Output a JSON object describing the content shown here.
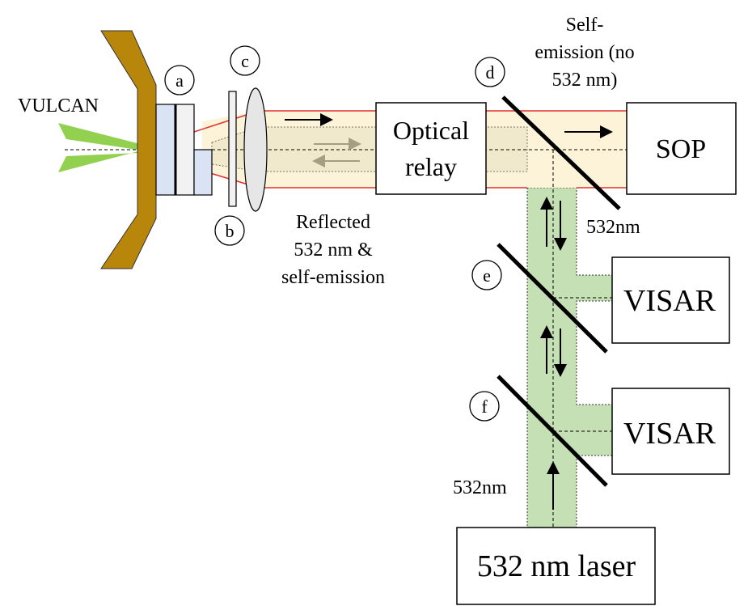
{
  "labels": {
    "vulcan": "VULCAN",
    "optical_relay_line1": "Optical",
    "optical_relay_line2": "relay",
    "sop": "SOP",
    "visar_top": "VISAR",
    "visar_bottom": "VISAR",
    "laser": "532 nm laser",
    "self_emission_line1": "Self-",
    "self_emission_line2": "emission (no",
    "self_emission_line3": "532 nm)",
    "reflected_line1": "Reflected",
    "reflected_line2": "532 nm &",
    "reflected_line3": "self-emission",
    "wavelength_right": "532nm",
    "wavelength_left": "532nm"
  },
  "markers": {
    "a": "a",
    "b": "b",
    "c": "c",
    "d": "d",
    "e": "e",
    "f": "f"
  },
  "colors": {
    "target_holder": "#b8860b",
    "vulcan_beam": "#92d050",
    "relay_beam": "#fdf3d8",
    "beam_edge": "#e03030",
    "green_beam": "#c5e0b4",
    "target_layer": "#dae3f3"
  }
}
